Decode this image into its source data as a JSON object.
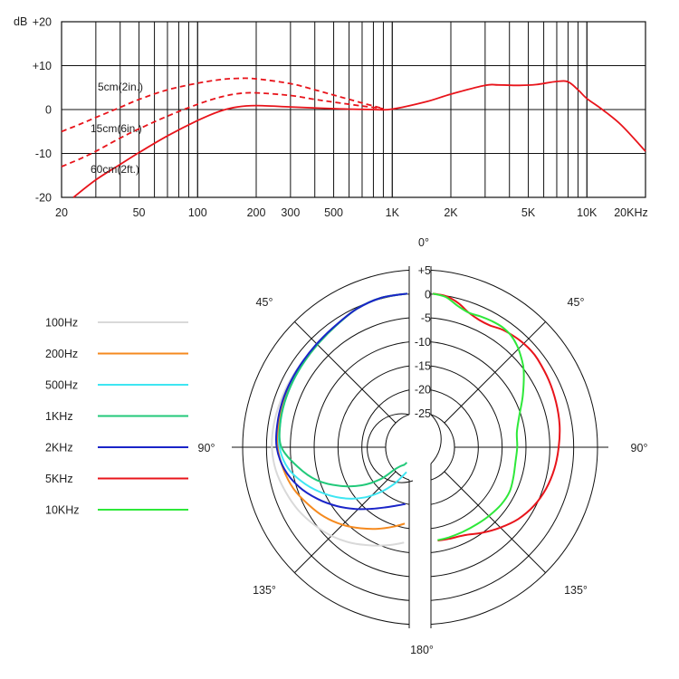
{
  "colors": {
    "background": "#ffffff",
    "grid": "#111111",
    "response": "#e8141b",
    "pattern_100Hz": "#d9d9d9",
    "pattern_200Hz": "#f58a1f",
    "pattern_500Hz": "#3ee6f2",
    "pattern_1KHz": "#22c97a",
    "pattern_2KHz": "#1a24c8",
    "pattern_5KHz": "#e8141b",
    "pattern_10KHz": "#2ee83a"
  },
  "chart_data": [
    {
      "type": "line",
      "title": "",
      "xlabel": "",
      "ylabel": "dB",
      "xscale": "log",
      "xlim": [
        20,
        20000
      ],
      "ylim": [
        -20,
        20
      ],
      "xticks": [
        20,
        50,
        100,
        200,
        300,
        500,
        1000,
        2000,
        5000,
        10000,
        20000
      ],
      "xtick_labels": [
        "20",
        "50",
        "100",
        "200",
        "300",
        "500",
        "1K",
        "2K",
        "5K",
        "10K",
        "20KHz"
      ],
      "yticks": [
        20,
        10,
        0,
        -10,
        -20
      ],
      "ytick_labels": [
        "+20",
        "+10",
        "0",
        "-10",
        "-20"
      ],
      "grid": true,
      "series": [
        {
          "label": "5cm(2in.)",
          "style": "dashed",
          "x": [
            20,
            25,
            30,
            40,
            50,
            70,
            100,
            130,
            160,
            200,
            300,
            400,
            500,
            700,
            900
          ],
          "y": [
            -5,
            -3.3,
            -1.8,
            0.5,
            2.3,
            4.5,
            6.0,
            6.8,
            7.1,
            7.0,
            5.9,
            4.5,
            3.3,
            1.5,
            0.2
          ]
        },
        {
          "label": "15cm(6in.)",
          "style": "dashed",
          "x": [
            20,
            25,
            30,
            40,
            50,
            70,
            100,
            130,
            160,
            200,
            300,
            400,
            500,
            700,
            900
          ],
          "y": [
            -13,
            -11.2,
            -9.5,
            -6.5,
            -4.4,
            -1.5,
            1.2,
            2.8,
            3.6,
            3.8,
            3.2,
            2.3,
            1.7,
            0.8,
            0.2
          ]
        },
        {
          "label": "60cm(2ft.)",
          "style": "solid",
          "x": [
            23,
            30,
            40,
            50,
            70,
            100,
            130,
            160,
            200,
            300,
            500,
            800,
            1000,
            1500,
            2000,
            3000,
            3500,
            4500,
            5500,
            7000,
            8000,
            9000,
            10000,
            12000,
            15000,
            20000
          ],
          "y": [
            -20,
            -16,
            -12.5,
            -9.8,
            -6,
            -2.5,
            -0.4,
            0.6,
            0.9,
            0.6,
            0.2,
            0,
            0.1,
            1.8,
            3.5,
            5.5,
            5.6,
            5.5,
            5.7,
            6.4,
            6.3,
            4.5,
            2.5,
            0,
            -3.5,
            -9.5
          ]
        }
      ]
    },
    {
      "type": "polar",
      "title": "",
      "radial_labels": [
        "+5",
        "0",
        "-5",
        "-10",
        "-15",
        "-20",
        "-25"
      ],
      "radial_values": [
        5,
        0,
        -5,
        -10,
        -15,
        -20,
        -25
      ],
      "angle_labels": [
        "0°",
        "45°",
        "45°",
        "90°",
        "90°",
        "135°",
        "135°",
        "180°"
      ],
      "legend_placement": "left",
      "left_half_series": [
        {
          "name": "100Hz",
          "color": "#d9d9d9",
          "points": [
            [
              0,
              0
            ],
            [
              10,
              -0.4
            ],
            [
              20,
              -1.3
            ],
            [
              30,
              -2.6
            ],
            [
              40,
              -3.4
            ],
            [
              50,
              -3.8
            ],
            [
              60,
              -3.9
            ],
            [
              70,
              -3.9
            ],
            [
              80,
              -3.8
            ],
            [
              90,
              -3.8
            ],
            [
              100,
              -4.2
            ],
            [
              110,
              -5
            ],
            [
              120,
              -5.8
            ],
            [
              130,
              -6.8
            ],
            [
              140,
              -7.8
            ],
            [
              150,
              -9
            ],
            [
              160,
              -10.3
            ],
            [
              170,
              -11.4
            ],
            [
              178,
              -12.2
            ]
          ]
        },
        {
          "name": "200Hz",
          "color": "#f58a1f",
          "points": [
            [
              0,
              0
            ],
            [
              10,
              -0.4
            ],
            [
              20,
              -1.3
            ],
            [
              30,
              -2.6
            ],
            [
              40,
              -3.5
            ],
            [
              50,
              -4.1
            ],
            [
              60,
              -4.4
            ],
            [
              70,
              -4.6
            ],
            [
              80,
              -4.8
            ],
            [
              90,
              -5
            ],
            [
              100,
              -5.8
            ],
            [
              110,
              -6.8
            ],
            [
              120,
              -8.2
            ],
            [
              130,
              -9.5
            ],
            [
              140,
              -11
            ],
            [
              150,
              -12.6
            ],
            [
              160,
              -14
            ],
            [
              170,
              -15.3
            ],
            [
              178,
              -16.2
            ]
          ]
        },
        {
          "name": "500Hz",
          "color": "#3ee6f2",
          "points": [
            [
              0,
              0
            ],
            [
              10,
              -0.4
            ],
            [
              20,
              -1.3
            ],
            [
              30,
              -2.6
            ],
            [
              40,
              -3.5
            ],
            [
              50,
              -4.1
            ],
            [
              60,
              -4.5
            ],
            [
              70,
              -4.8
            ],
            [
              80,
              -5.1
            ],
            [
              90,
              -5.4
            ],
            [
              100,
              -6.8
            ],
            [
              110,
              -9.5
            ],
            [
              120,
              -12.5
            ],
            [
              130,
              -15.5
            ],
            [
              140,
              -18.5
            ],
            [
              150,
              -21.5
            ],
            [
              160,
              -24
            ],
            [
              170,
              -26
            ],
            [
              178,
              -27
            ]
          ]
        },
        {
          "name": "1KHz",
          "color": "#22c97a",
          "points": [
            [
              0,
              0
            ],
            [
              10,
              -0.4
            ],
            [
              20,
              -1.3
            ],
            [
              30,
              -2.6
            ],
            [
              40,
              -3.5
            ],
            [
              50,
              -4.1
            ],
            [
              60,
              -4.5
            ],
            [
              70,
              -4.8
            ],
            [
              80,
              -5.1
            ],
            [
              90,
              -5.8
            ],
            [
              100,
              -8.8
            ],
            [
              110,
              -12
            ],
            [
              120,
              -16
            ],
            [
              130,
              -19.8
            ],
            [
              140,
              -23.5
            ],
            [
              150,
              -26.8
            ],
            [
              160,
              -28
            ],
            [
              170,
              -28.5
            ],
            [
              178,
              -29
            ]
          ]
        },
        {
          "name": "2KHz",
          "color": "#1a24c8",
          "points": [
            [
              0,
              0
            ],
            [
              10,
              -0.4
            ],
            [
              20,
              -1.3
            ],
            [
              30,
              -2.5
            ],
            [
              40,
              -3.3
            ],
            [
              50,
              -3.8
            ],
            [
              60,
              -4.1
            ],
            [
              70,
              -4.3
            ],
            [
              80,
              -4.5
            ],
            [
              90,
              -4.8
            ],
            [
              100,
              -6
            ],
            [
              110,
              -8
            ],
            [
              120,
              -10.5
            ],
            [
              130,
              -13
            ],
            [
              140,
              -15.3
            ],
            [
              150,
              -17.3
            ],
            [
              160,
              -18.8
            ],
            [
              170,
              -19.8
            ],
            [
              178,
              -20.3
            ]
          ]
        }
      ],
      "right_half_series": [
        {
          "name": "5KHz",
          "color": "#e8141b",
          "points": [
            [
              0,
              0
            ],
            [
              5,
              -0.4
            ],
            [
              10,
              -1.5
            ],
            [
              15,
              -3
            ],
            [
              20,
              -3.8
            ],
            [
              25,
              -4
            ],
            [
              30,
              -3.6
            ],
            [
              35,
              -3.4
            ],
            [
              40,
              -3.3
            ],
            [
              45,
              -3.3
            ],
            [
              50,
              -3.5
            ],
            [
              60,
              -4.1
            ],
            [
              70,
              -4.7
            ],
            [
              80,
              -5.2
            ],
            [
              90,
              -5.8
            ],
            [
              100,
              -6.3
            ],
            [
              110,
              -6.9
            ],
            [
              120,
              -7.7
            ],
            [
              130,
              -8.8
            ],
            [
              140,
              -10.2
            ],
            [
              150,
              -11.5
            ],
            [
              160,
              -12.6
            ],
            [
              170,
              -12.7
            ],
            [
              177,
              -12.6
            ]
          ]
        },
        {
          "name": "10KHz",
          "color": "#2ee83a",
          "points": [
            [
              0,
              0
            ],
            [
              5,
              -0.6
            ],
            [
              10,
              -2.1
            ],
            [
              15,
              -3
            ],
            [
              20,
              -3
            ],
            [
              25,
              -3
            ],
            [
              30,
              -3.1
            ],
            [
              35,
              -3.6
            ],
            [
              40,
              -4.6
            ],
            [
              45,
              -5.9
            ],
            [
              50,
              -7.3
            ],
            [
              60,
              -10.4
            ],
            [
              70,
              -12.9
            ],
            [
              80,
              -14.3
            ],
            [
              90,
              -14.5
            ],
            [
              100,
              -14.6
            ],
            [
              110,
              -14.2
            ],
            [
              120,
              -13.6
            ],
            [
              130,
              -13.5
            ],
            [
              140,
              -13.6
            ],
            [
              150,
              -13.6
            ],
            [
              160,
              -13.4
            ],
            [
              170,
              -13
            ],
            [
              177,
              -12.7
            ]
          ]
        }
      ]
    }
  ],
  "freq_chart": {
    "ylabel": "dB",
    "annotations": [
      "5cm(2in.)",
      "15cm(6in.)",
      "60cm(2ft.)"
    ]
  },
  "polar_chart": {
    "legend": [
      "100Hz",
      "200Hz",
      "500Hz",
      "1KHz",
      "2KHz",
      "5KHz",
      "10KHz"
    ]
  }
}
